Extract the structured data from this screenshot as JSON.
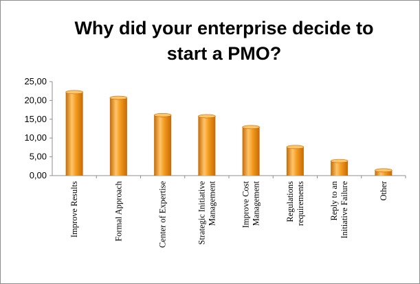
{
  "chart_data": {
    "type": "bar",
    "title_lines": [
      "Why did your enterprise decide to",
      "start a PMO?"
    ],
    "categories": [
      [
        "Improve Results"
      ],
      [
        "Formal Approach"
      ],
      [
        "Center of Expertise"
      ],
      [
        "Strategic Initiative",
        "Management"
      ],
      [
        "Improve Cost",
        "Management"
      ],
      [
        "Regulations",
        "requirements"
      ],
      [
        "Reply to an",
        "Initiative Failure"
      ],
      [
        "Other"
      ]
    ],
    "values": [
      22.2,
      20.7,
      16.1,
      15.8,
      12.9,
      7.6,
      3.9,
      1.4
    ],
    "ylim": [
      0,
      25
    ],
    "yticks": [
      0,
      5,
      10,
      15,
      20,
      25
    ],
    "ytick_labels": [
      "0,00",
      "5,00",
      "10,00",
      "15,00",
      "20,00",
      "25,00"
    ],
    "grid": false,
    "legend": "none",
    "colors": {
      "bar": "#f39a1e",
      "bar_dark": "#c56a06",
      "bar_light": "#ffc56a",
      "axis": "#8c8c8c"
    }
  }
}
